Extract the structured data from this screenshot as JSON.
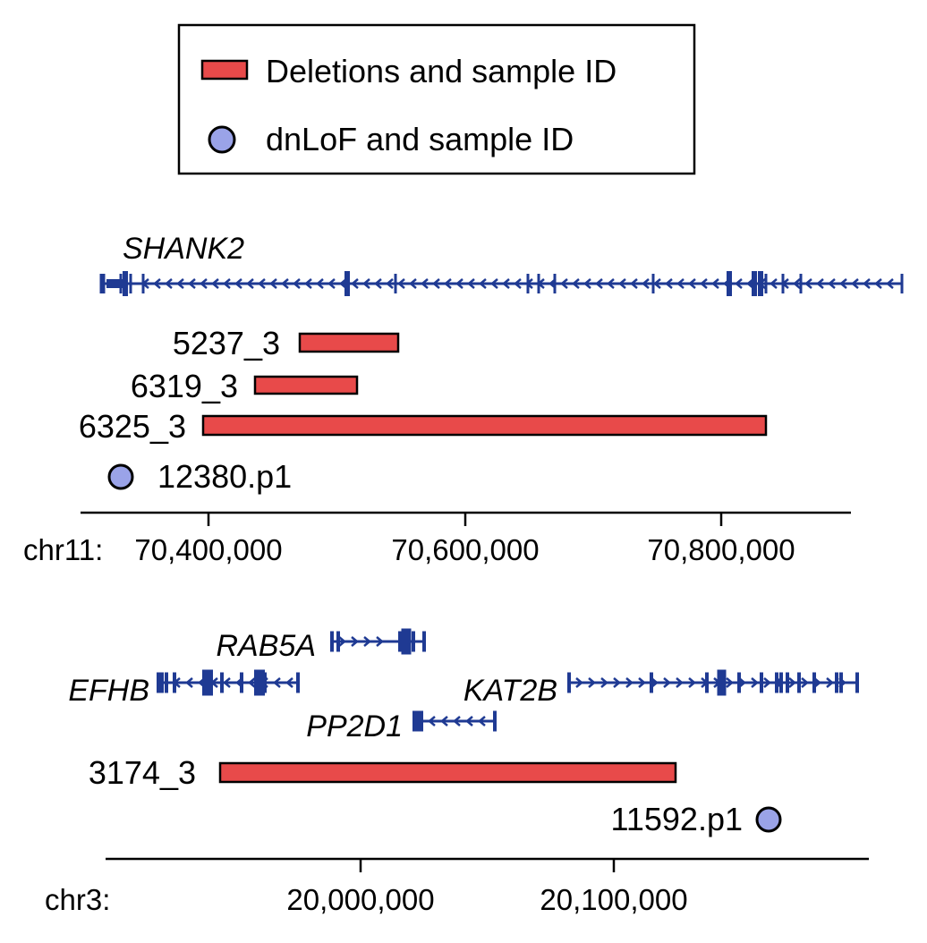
{
  "legend": {
    "deletion_label": "Deletions and sample ID",
    "dnlof_label": "dnLoF and sample ID"
  },
  "colors": {
    "deletion": "#e84a4a",
    "dnlof": "#9aa3e8",
    "gene": "#1f3a93"
  },
  "panel1": {
    "chrom_label": "chr11:",
    "ticks": [
      "70,400,000",
      "70,600,000",
      "70,800,000"
    ],
    "gene": "SHANK2",
    "deletions": [
      {
        "id": "5237_3"
      },
      {
        "id": "6319_3"
      },
      {
        "id": "6325_3"
      }
    ],
    "dnlof": [
      {
        "id": "12380.p1"
      }
    ]
  },
  "panel2": {
    "chrom_label": "chr3:",
    "ticks": [
      "20,000,000",
      "20,100,000"
    ],
    "genes": [
      "RAB5A",
      "EFHB",
      "KAT2B",
      "PP2D1"
    ],
    "deletions": [
      {
        "id": "3174_3"
      }
    ],
    "dnlof": [
      {
        "id": "11592.p1"
      }
    ]
  }
}
